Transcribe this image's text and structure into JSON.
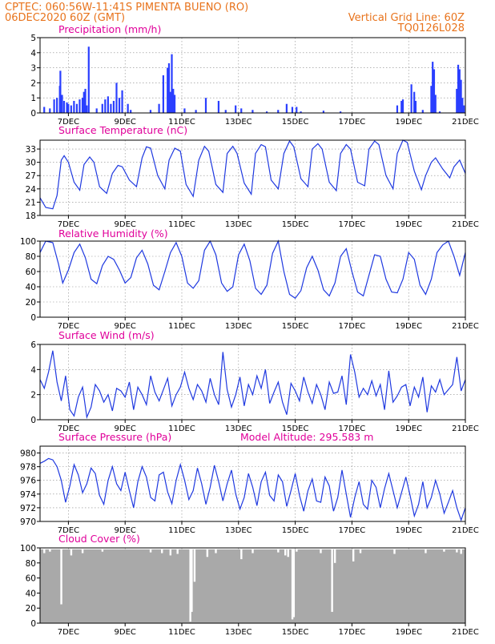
{
  "header": {
    "line1_left": "CPTEC:   060:56W-11:41S   PIMENTA BUENO (RO)",
    "line2_left": "06DEC2020 60Z (GMT)",
    "line2_right": "Vertical Grid Line: 60Z",
    "line3_right": "TQ0126L028"
  },
  "x_axis": {
    "ticks": [
      "7DEC",
      "9DEC",
      "11DEC",
      "13DEC",
      "15DEC",
      "17DEC",
      "19DEC",
      "21DEC"
    ]
  },
  "chart_data": [
    {
      "type": "bar",
      "title": "Precipitation (mm/h)",
      "ylim": [
        0,
        5
      ],
      "yticks": [
        0,
        1,
        2,
        3,
        4,
        5
      ],
      "color": "#2a3fff",
      "events": [
        [
          6.15,
          0.4
        ],
        [
          6.35,
          0.3
        ],
        [
          6.5,
          0.9
        ],
        [
          6.6,
          1.0
        ],
        [
          6.7,
          1.8
        ],
        [
          6.72,
          2.8
        ],
        [
          6.78,
          1.2
        ],
        [
          6.85,
          0.8
        ],
        [
          6.95,
          0.7
        ],
        [
          7.0,
          0.6
        ],
        [
          7.1,
          0.5
        ],
        [
          7.2,
          0.8
        ],
        [
          7.3,
          0.6
        ],
        [
          7.4,
          0.9
        ],
        [
          7.5,
          1.0
        ],
        [
          7.55,
          1.4
        ],
        [
          7.6,
          1.6
        ],
        [
          7.65,
          0.5
        ],
        [
          7.72,
          4.4
        ],
        [
          8.0,
          0.3
        ],
        [
          8.2,
          0.6
        ],
        [
          8.3,
          0.9
        ],
        [
          8.4,
          1.1
        ],
        [
          8.5,
          0.6
        ],
        [
          8.6,
          0.8
        ],
        [
          8.7,
          2.0
        ],
        [
          8.8,
          1.0
        ],
        [
          8.9,
          1.5
        ],
        [
          9.1,
          0.6
        ],
        [
          9.2,
          0.2
        ],
        [
          9.9,
          0.2
        ],
        [
          10.2,
          0.6
        ],
        [
          10.35,
          2.5
        ],
        [
          10.5,
          3.0
        ],
        [
          10.55,
          3.3
        ],
        [
          10.6,
          1.4
        ],
        [
          10.65,
          3.9
        ],
        [
          10.7,
          1.6
        ],
        [
          10.75,
          1.2
        ],
        [
          11.1,
          0.3
        ],
        [
          11.5,
          0.2
        ],
        [
          11.85,
          1.0
        ],
        [
          12.3,
          0.8
        ],
        [
          12.55,
          0.2
        ],
        [
          12.9,
          0.5
        ],
        [
          13.1,
          0.3
        ],
        [
          13.5,
          0.2
        ],
        [
          14.0,
          0.1
        ],
        [
          14.4,
          0.2
        ],
        [
          14.7,
          0.6
        ],
        [
          14.9,
          0.4
        ],
        [
          15.05,
          0.4
        ],
        [
          15.2,
          0.1
        ],
        [
          16.0,
          0.15
        ],
        [
          16.6,
          0.1
        ],
        [
          18.6,
          0.5
        ],
        [
          18.75,
          0.8
        ],
        [
          18.8,
          0.9
        ],
        [
          19.1,
          1.9
        ],
        [
          19.2,
          1.4
        ],
        [
          19.25,
          0.8
        ],
        [
          19.5,
          0.2
        ],
        [
          19.8,
          1.8
        ],
        [
          19.85,
          3.4
        ],
        [
          19.9,
          2.9
        ],
        [
          19.95,
          1.2
        ],
        [
          20.1,
          0.1
        ],
        [
          20.7,
          1.6
        ],
        [
          20.75,
          3.2
        ],
        [
          20.8,
          2.9
        ],
        [
          20.85,
          2.2
        ],
        [
          20.9,
          1.0
        ],
        [
          20.95,
          0.5
        ]
      ]
    },
    {
      "type": "line",
      "title": "Surface Temperature (nC)",
      "ylim": [
        18,
        35
      ],
      "yticks": [
        18,
        21,
        24,
        27,
        30,
        33
      ],
      "color": "#1f39e0",
      "x": [
        6.0,
        6.2,
        6.45,
        6.6,
        6.75,
        6.85,
        7.0,
        7.2,
        7.4,
        7.55,
        7.75,
        7.9,
        8.1,
        8.35,
        8.55,
        8.75,
        8.9,
        9.15,
        9.4,
        9.6,
        9.75,
        9.9,
        10.15,
        10.4,
        10.55,
        10.75,
        10.95,
        11.15,
        11.4,
        11.6,
        11.8,
        11.95,
        12.2,
        12.45,
        12.6,
        12.8,
        12.95,
        13.2,
        13.45,
        13.6,
        13.8,
        13.95,
        14.15,
        14.4,
        14.6,
        14.8,
        14.95,
        15.2,
        15.45,
        15.6,
        15.8,
        15.95,
        16.2,
        16.45,
        16.6,
        16.8,
        16.95,
        17.2,
        17.45,
        17.6,
        17.8,
        17.95,
        18.2,
        18.45,
        18.6,
        18.8,
        18.95,
        19.2,
        19.45,
        19.6,
        19.8,
        19.95,
        20.2,
        20.45,
        20.6,
        20.8,
        21.0
      ],
      "y": [
        22,
        19.8,
        19.5,
        22.5,
        30.5,
        31.5,
        30,
        25.5,
        23.7,
        29.5,
        31.2,
        30,
        24.5,
        23,
        27.5,
        29.3,
        29,
        26,
        24.5,
        31,
        33.5,
        33.2,
        27,
        24,
        30.5,
        33.2,
        32.5,
        25,
        22.3,
        30.5,
        33.6,
        32.5,
        25,
        23.2,
        32,
        33.6,
        32,
        25.3,
        22.8,
        32,
        34,
        33.5,
        26,
        24,
        32,
        34.8,
        33.5,
        26.3,
        24.5,
        33,
        34.2,
        33,
        25.5,
        23.6,
        32,
        34,
        33,
        25.5,
        24.7,
        33,
        34.8,
        34,
        27,
        24,
        32,
        35,
        34.5,
        28,
        23.8,
        27,
        30,
        31,
        28.5,
        26.5,
        29,
        30.5,
        27.5
      ]
    },
    {
      "type": "line",
      "title": "Relative Humidity (%)",
      "ylim": [
        0,
        100
      ],
      "yticks": [
        0,
        20,
        40,
        60,
        80,
        100
      ],
      "color": "#1f39e0",
      "x": [
        6.0,
        6.2,
        6.45,
        6.65,
        6.8,
        7.0,
        7.2,
        7.4,
        7.6,
        7.8,
        8.0,
        8.2,
        8.4,
        8.6,
        8.8,
        9.0,
        9.2,
        9.4,
        9.6,
        9.8,
        10.0,
        10.2,
        10.4,
        10.6,
        10.8,
        11.0,
        11.2,
        11.4,
        11.6,
        11.8,
        12.0,
        12.2,
        12.4,
        12.6,
        12.8,
        13.0,
        13.2,
        13.4,
        13.6,
        13.8,
        14.0,
        14.2,
        14.4,
        14.6,
        14.8,
        15.0,
        15.2,
        15.4,
        15.6,
        15.8,
        16.0,
        16.2,
        16.4,
        16.6,
        16.8,
        17.0,
        17.2,
        17.4,
        17.6,
        17.8,
        18.0,
        18.2,
        18.4,
        18.6,
        18.8,
        19.0,
        19.2,
        19.4,
        19.6,
        19.8,
        20.0,
        20.2,
        20.4,
        20.6,
        20.8,
        21.0
      ],
      "y": [
        85,
        100,
        98,
        70,
        45,
        62,
        85,
        96,
        78,
        50,
        44,
        68,
        80,
        76,
        62,
        45,
        52,
        78,
        88,
        70,
        42,
        36,
        60,
        85,
        98,
        80,
        45,
        38,
        48,
        88,
        100,
        82,
        45,
        34,
        40,
        82,
        96,
        74,
        38,
        30,
        42,
        84,
        100,
        60,
        30,
        25,
        35,
        65,
        80,
        62,
        36,
        28,
        45,
        80,
        90,
        60,
        33,
        28,
        55,
        82,
        80,
        50,
        33,
        32,
        50,
        85,
        76,
        42,
        30,
        50,
        85,
        95,
        100,
        80,
        55,
        85
      ]
    },
    {
      "type": "line",
      "title": "Surface Wind (m/s)",
      "ylim": [
        0,
        6
      ],
      "yticks": [
        0,
        2,
        4,
        6
      ],
      "color": "#1f39e0",
      "x": [
        6.0,
        6.15,
        6.3,
        6.45,
        6.6,
        6.75,
        6.9,
        7.05,
        7.2,
        7.35,
        7.5,
        7.65,
        7.8,
        7.95,
        8.1,
        8.25,
        8.4,
        8.55,
        8.7,
        8.85,
        9.0,
        9.15,
        9.3,
        9.45,
        9.6,
        9.75,
        9.9,
        10.05,
        10.2,
        10.35,
        10.5,
        10.65,
        10.8,
        10.95,
        11.1,
        11.25,
        11.4,
        11.55,
        11.7,
        11.85,
        12.0,
        12.15,
        12.3,
        12.45,
        12.6,
        12.75,
        12.9,
        13.05,
        13.2,
        13.35,
        13.5,
        13.65,
        13.8,
        13.95,
        14.1,
        14.25,
        14.4,
        14.55,
        14.7,
        14.85,
        15.0,
        15.15,
        15.3,
        15.45,
        15.6,
        15.75,
        15.9,
        16.05,
        16.2,
        16.35,
        16.5,
        16.65,
        16.8,
        16.95,
        17.1,
        17.25,
        17.4,
        17.55,
        17.7,
        17.85,
        18.0,
        18.15,
        18.3,
        18.45,
        18.6,
        18.75,
        18.9,
        19.05,
        19.2,
        19.35,
        19.5,
        19.65,
        19.8,
        19.95,
        20.1,
        20.25,
        20.4,
        20.55,
        20.7,
        20.85,
        21.0
      ],
      "y": [
        3.2,
        2.5,
        3.8,
        5.5,
        3.0,
        1.5,
        3.5,
        0.8,
        0.3,
        1.8,
        2.6,
        0.2,
        1.0,
        2.8,
        2.3,
        1.4,
        2.0,
        0.7,
        2.5,
        2.3,
        1.8,
        3.0,
        0.8,
        2.6,
        2.0,
        1.2,
        3.5,
        2.2,
        1.5,
        2.4,
        3.3,
        1.1,
        2.0,
        2.6,
        3.8,
        2.5,
        1.6,
        2.8,
        2.3,
        1.4,
        3.3,
        2.0,
        1.2,
        5.4,
        2.4,
        1.0,
        2.0,
        3.4,
        1.1,
        2.8,
        2.0,
        3.5,
        2.5,
        4.0,
        1.3,
        2.2,
        3.0,
        1.4,
        0.4,
        2.9,
        2.3,
        1.5,
        3.4,
        2.2,
        1.3,
        2.8,
        2.0,
        0.8,
        3.0,
        2.1,
        2.2,
        3.5,
        1.2,
        5.2,
        3.8,
        1.8,
        2.5,
        2.0,
        3.1,
        1.9,
        2.8,
        0.8,
        3.9,
        1.4,
        1.9,
        2.6,
        2.8,
        1.1,
        2.6,
        1.8,
        3.4,
        0.6,
        2.7,
        2.2,
        3.2,
        2.0,
        2.4,
        2.8,
        5.0,
        2.3,
        3.2
      ]
    },
    {
      "type": "line",
      "title": "Surface Pressure (hPa)",
      "annotation": "Model Altitude: 295.583 m",
      "ylim": [
        970,
        981
      ],
      "yticks": [
        970,
        972,
        974,
        976,
        978,
        980
      ],
      "color": "#1f39e0",
      "x": [
        6.0,
        6.15,
        6.3,
        6.45,
        6.6,
        6.75,
        6.9,
        7.05,
        7.2,
        7.35,
        7.5,
        7.65,
        7.8,
        7.95,
        8.1,
        8.25,
        8.4,
        8.55,
        8.7,
        8.85,
        9.0,
        9.15,
        9.3,
        9.45,
        9.6,
        9.75,
        9.9,
        10.05,
        10.2,
        10.35,
        10.5,
        10.65,
        10.8,
        10.95,
        11.1,
        11.25,
        11.4,
        11.55,
        11.7,
        11.85,
        12.0,
        12.15,
        12.3,
        12.45,
        12.6,
        12.75,
        12.9,
        13.05,
        13.2,
        13.35,
        13.5,
        13.65,
        13.8,
        13.95,
        14.1,
        14.25,
        14.4,
        14.55,
        14.7,
        14.85,
        15.0,
        15.15,
        15.3,
        15.45,
        15.6,
        15.75,
        15.9,
        16.05,
        16.2,
        16.35,
        16.5,
        16.65,
        16.8,
        16.95,
        17.1,
        17.25,
        17.4,
        17.55,
        17.7,
        17.85,
        18.0,
        18.15,
        18.3,
        18.45,
        18.6,
        18.75,
        18.9,
        19.05,
        19.2,
        19.35,
        19.5,
        19.65,
        19.8,
        19.95,
        20.1,
        20.25,
        20.4,
        20.55,
        20.7,
        20.85,
        21.0
      ],
      "y": [
        978.5,
        978.8,
        979.2,
        979.0,
        978.0,
        976.0,
        972.8,
        975.2,
        978.3,
        976.8,
        974.2,
        975.5,
        977.8,
        977.0,
        973.8,
        972.5,
        976.0,
        978.0,
        975.5,
        974.5,
        977.2,
        974.5,
        972.0,
        975.8,
        978.0,
        976.5,
        973.5,
        973.0,
        976.8,
        977.2,
        974.3,
        972.6,
        976.0,
        978.3,
        976.0,
        973.2,
        974.5,
        977.8,
        975.5,
        972.5,
        975.0,
        978.2,
        975.8,
        973.0,
        975.5,
        977.5,
        974.0,
        971.8,
        973.5,
        977.0,
        975.0,
        972.3,
        975.8,
        977.2,
        973.8,
        973.0,
        976.8,
        975.8,
        972.2,
        974.5,
        977.0,
        973.8,
        971.5,
        974.5,
        976.2,
        973.0,
        972.8,
        976.5,
        975.2,
        971.5,
        973.5,
        977.5,
        974.0,
        970.6,
        973.5,
        975.8,
        972.5,
        971.8,
        976.0,
        975.0,
        972.0,
        974.8,
        977.0,
        974.5,
        972.0,
        974.2,
        976.5,
        973.8,
        970.8,
        972.5,
        975.8,
        972.0,
        973.5,
        976.0,
        974.0,
        971.2,
        972.8,
        974.5,
        972.0,
        970.2,
        972.0
      ]
    },
    {
      "type": "bar",
      "title": "Cloud Cover (%)",
      "ylim": [
        0,
        100
      ],
      "yticks": [
        0,
        20,
        40,
        60,
        80,
        100
      ],
      "color": "#a9a9a9",
      "dips": [
        [
          6.15,
          93
        ],
        [
          6.35,
          95
        ],
        [
          6.75,
          25
        ],
        [
          7.1,
          90
        ],
        [
          7.5,
          93
        ],
        [
          8.2,
          95
        ],
        [
          9.9,
          94
        ],
        [
          10.3,
          93
        ],
        [
          10.6,
          90
        ],
        [
          10.85,
          92
        ],
        [
          11.3,
          2
        ],
        [
          11.35,
          15
        ],
        [
          11.45,
          55
        ],
        [
          11.9,
          88
        ],
        [
          12.2,
          93
        ],
        [
          13.1,
          85
        ],
        [
          13.5,
          93
        ],
        [
          14.4,
          94
        ],
        [
          14.65,
          90
        ],
        [
          14.75,
          88
        ],
        [
          14.9,
          5
        ],
        [
          14.95,
          8
        ],
        [
          15.05,
          95
        ],
        [
          15.9,
          93
        ],
        [
          16.3,
          15
        ],
        [
          16.4,
          80
        ],
        [
          17.05,
          82
        ],
        [
          17.3,
          93
        ],
        [
          18.5,
          92
        ],
        [
          19.6,
          93
        ],
        [
          20.25,
          95
        ],
        [
          20.7,
          94
        ],
        [
          20.85,
          92
        ]
      ]
    }
  ]
}
